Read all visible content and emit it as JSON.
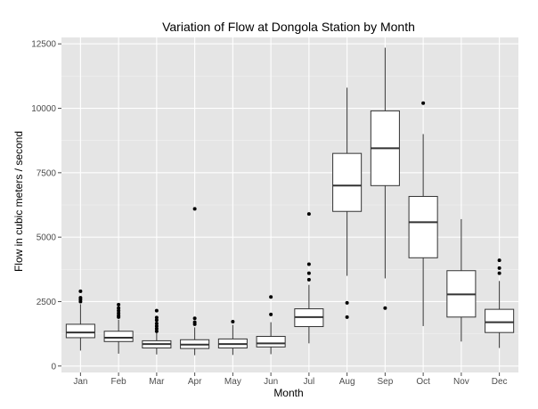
{
  "chart_data": {
    "type": "boxplot",
    "title": "Variation of Flow at Dongola Station by Month",
    "xlabel": "Month",
    "ylabel": "Flow in cubic meters / second",
    "ylim": [
      -250,
      12750
    ],
    "yticks": [
      0,
      2500,
      5000,
      7500,
      10000,
      12500
    ],
    "ytick_labels": [
      "0",
      "2500",
      "5000",
      "7500",
      "10000",
      "12500"
    ],
    "grid": true,
    "background": "#e5e5e5",
    "grid_color": "#ffffff",
    "categories": [
      "Jan",
      "Feb",
      "Mar",
      "Apr",
      "May",
      "Jun",
      "Jul",
      "Aug",
      "Sep",
      "Oct",
      "Nov",
      "Dec"
    ],
    "boxes": [
      {
        "month": "Jan",
        "min": 600,
        "q1": 1100,
        "median": 1300,
        "q3": 1620,
        "max": 2400,
        "outliers": [
          2500,
          2580,
          2650,
          2900
        ]
      },
      {
        "month": "Feb",
        "min": 480,
        "q1": 950,
        "median": 1100,
        "q3": 1350,
        "max": 1800,
        "outliers": [
          1900,
          1960,
          2050,
          2150,
          2250,
          2380
        ]
      },
      {
        "month": "Mar",
        "min": 450,
        "q1": 700,
        "median": 850,
        "q3": 980,
        "max": 1300,
        "outliers": [
          1350,
          1450,
          1550,
          1650,
          1780,
          1880,
          2150
        ]
      },
      {
        "month": "Apr",
        "min": 420,
        "q1": 680,
        "median": 830,
        "q3": 1020,
        "max": 1500,
        "outliers": [
          1620,
          1700,
          1850,
          6100
        ]
      },
      {
        "month": "May",
        "min": 430,
        "q1": 700,
        "median": 850,
        "q3": 1050,
        "max": 1600,
        "outliers": [
          1720
        ]
      },
      {
        "month": "Jun",
        "min": 460,
        "q1": 740,
        "median": 880,
        "q3": 1150,
        "max": 1700,
        "outliers": [
          2000,
          2680
        ]
      },
      {
        "month": "Jul",
        "min": 880,
        "q1": 1530,
        "median": 1900,
        "q3": 2220,
        "max": 3150,
        "outliers": [
          3350,
          3600,
          3950,
          5900
        ]
      },
      {
        "month": "Aug",
        "min": 3500,
        "q1": 6000,
        "median": 7000,
        "q3": 8250,
        "max": 10800,
        "outliers": [
          1900,
          2450
        ]
      },
      {
        "month": "Sep",
        "min": 3400,
        "q1": 7000,
        "median": 8450,
        "q3": 9900,
        "max": 12350,
        "outliers": [
          2250
        ]
      },
      {
        "month": "Oct",
        "min": 1550,
        "q1": 4200,
        "median": 5580,
        "q3": 6580,
        "max": 9000,
        "outliers": [
          10200
        ]
      },
      {
        "month": "Nov",
        "min": 950,
        "q1": 1900,
        "median": 2780,
        "q3": 3700,
        "max": 5700,
        "outliers": []
      },
      {
        "month": "Dec",
        "min": 700,
        "q1": 1300,
        "median": 1700,
        "q3": 2200,
        "max": 3300,
        "outliers": [
          3600,
          3800,
          4100
        ]
      }
    ]
  }
}
